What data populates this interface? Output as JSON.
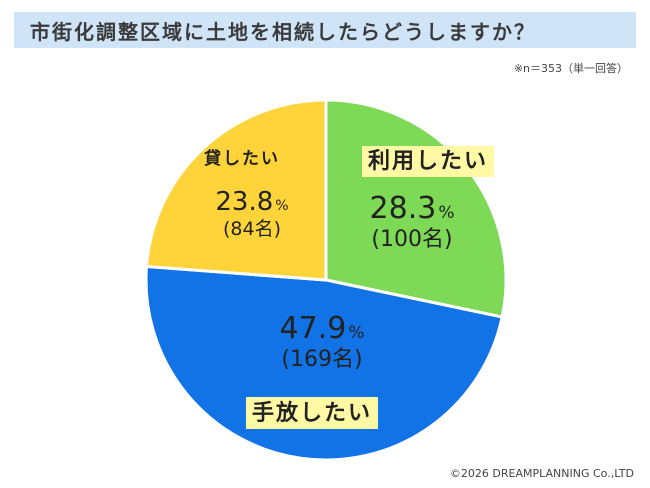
{
  "title": "市街化調整区域に土地を相続したらどうしますか？",
  "note": "※n＝353（単一回答）",
  "credit": "©2026 DREAMPLANNING Co.,LTD",
  "chart_data": {
    "type": "pie",
    "n": 353,
    "slices": [
      {
        "label": "利用したい",
        "value": 28.3,
        "percent_text": "28.3",
        "count_text": "(100名)",
        "color": "#7ed957",
        "highlight": true
      },
      {
        "label": "手放したい",
        "value": 47.9,
        "percent_text": "47.9",
        "count_text": "(169名)",
        "color": "#1173e6",
        "highlight": true
      },
      {
        "label": "貸したい",
        "value": 23.8,
        "percent_text": "23.8",
        "count_text": "(84名)",
        "color": "#ffd43b",
        "highlight": false
      }
    ],
    "percent_unit": "%",
    "highlight_color": "#fff9a6"
  }
}
